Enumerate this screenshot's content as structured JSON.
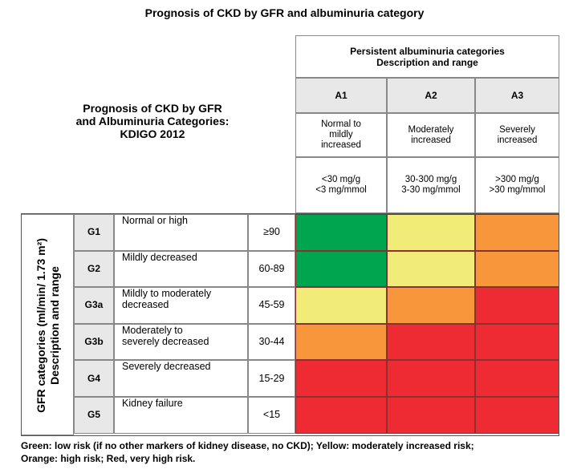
{
  "title": "Prognosis of CKD by GFR and albuminuria category",
  "kdigo_title": [
    "Prognosis of CKD by GFR",
    "and Albuminuria Categories:",
    "KDIGO 2012"
  ],
  "albuminuria_header": [
    "Persistent albuminuria categories",
    "Description and range"
  ],
  "albuminuria": [
    {
      "code": "A1",
      "desc": [
        "Normal to",
        "mildly",
        "increased"
      ],
      "range": [
        "<30 mg/g",
        "<3 mg/mmol"
      ]
    },
    {
      "code": "A2",
      "desc": [
        "Moderately",
        "increased"
      ],
      "range": [
        "30-300 mg/g",
        "3-30 mg/mmol"
      ]
    },
    {
      "code": "A3",
      "desc": [
        "Severely",
        "increased"
      ],
      "range": [
        ">300 mg/g",
        ">30 mg/mmol"
      ]
    }
  ],
  "gfr_side_label": [
    "GFR categories (ml/min/ 1.73 m²)",
    "Description and range"
  ],
  "gfr": [
    {
      "code": "G1",
      "desc": [
        "Normal or high"
      ],
      "range": "≥90",
      "risk": [
        "green",
        "yellow",
        "orange"
      ]
    },
    {
      "code": "G2",
      "desc": [
        "Mildly decreased"
      ],
      "range": "60-89",
      "risk": [
        "green",
        "yellow",
        "orange"
      ]
    },
    {
      "code": "G3a",
      "desc": [
        "Mildly to moderately",
        "decreased"
      ],
      "range": "45-59",
      "risk": [
        "yellow",
        "orange",
        "red"
      ]
    },
    {
      "code": "G3b",
      "desc": [
        "Moderately to",
        "severely decreased"
      ],
      "range": "30-44",
      "risk": [
        "orange",
        "red",
        "red"
      ]
    },
    {
      "code": "G4",
      "desc": [
        "Severely decreased"
      ],
      "range": "15-29",
      "risk": [
        "red",
        "red",
        "red"
      ]
    },
    {
      "code": "G5",
      "desc": [
        "Kidney failure"
      ],
      "range": "<15",
      "risk": [
        "red",
        "red",
        "red"
      ]
    }
  ],
  "risk_colors": {
    "green": "#00a64f",
    "yellow": "#f1ec78",
    "orange": "#f7963b",
    "red": "#ee2a33"
  },
  "legend": [
    "Green: low risk (if no other markers of kidney disease, no CKD); Yellow: moderately increased risk;",
    "Orange: high risk; Red, very high risk."
  ]
}
